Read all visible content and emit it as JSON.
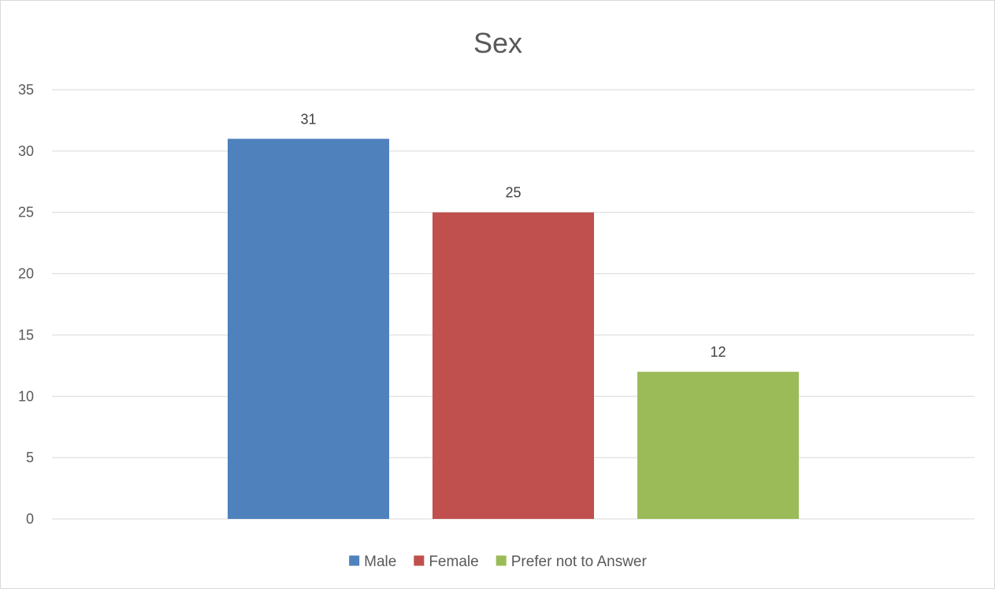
{
  "chart_data": {
    "type": "bar",
    "title": "Sex",
    "xlabel": "",
    "ylabel": "",
    "ylim": [
      0,
      35
    ],
    "yticks": [
      0,
      5,
      10,
      15,
      20,
      25,
      30,
      35
    ],
    "grid": true,
    "legend_position": "bottom",
    "series": [
      {
        "name": "Male",
        "value": 31,
        "color": "#4f81bd"
      },
      {
        "name": "Female",
        "value": 25,
        "color": "#c0504d"
      },
      {
        "name": "Prefer not to Answer",
        "value": 12,
        "color": "#9bbb59"
      }
    ]
  }
}
